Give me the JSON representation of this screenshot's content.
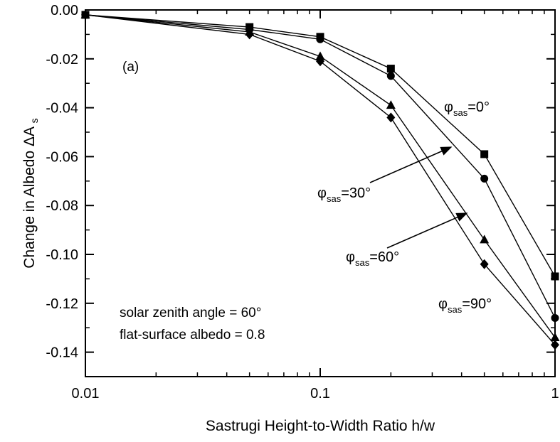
{
  "chart_data": {
    "type": "line",
    "panel_label": "(a)",
    "xlabel": "Sastrugi Height-to-Width Ratio h/w",
    "ylabel": "Change in Albedo",
    "ylabel_symbol": "ΔA",
    "ylabel_subscript": "s",
    "xscale": "log",
    "xlim": [
      0.01,
      1
    ],
    "ylim": [
      -0.15,
      0.0
    ],
    "x_ticks": [
      {
        "value": 0.01,
        "label": "0.01"
      },
      {
        "value": 0.1,
        "label": "0.1"
      },
      {
        "value": 1,
        "label": "1"
      }
    ],
    "y_ticks": [
      {
        "value": 0.0,
        "label": "0.00"
      },
      {
        "value": -0.02,
        "label": "-0.02"
      },
      {
        "value": -0.04,
        "label": "-0.04"
      },
      {
        "value": -0.06,
        "label": "-0.06"
      },
      {
        "value": -0.08,
        "label": "-0.08"
      },
      {
        "value": -0.1,
        "label": "-0.10"
      },
      {
        "value": -0.12,
        "label": "-0.12"
      },
      {
        "value": -0.14,
        "label": "-0.14"
      }
    ],
    "annotations": [
      "solar zenith angle = 60°",
      "flat-surface albedo = 0.8"
    ],
    "series": [
      {
        "name_symbol": "φ",
        "name_sub": "sas",
        "name_value": "=0°",
        "marker": "square",
        "x": [
          0.01,
          0.05,
          0.1,
          0.2,
          0.5,
          1
        ],
        "y": [
          -0.002,
          -0.007,
          -0.011,
          -0.024,
          -0.059,
          -0.109
        ]
      },
      {
        "name_symbol": "φ",
        "name_sub": "sas",
        "name_value": "=30°",
        "marker": "circle",
        "x": [
          0.01,
          0.05,
          0.1,
          0.2,
          0.5,
          1
        ],
        "y": [
          -0.002,
          -0.008,
          -0.012,
          -0.027,
          -0.069,
          -0.126
        ]
      },
      {
        "name_symbol": "φ",
        "name_sub": "sas",
        "name_value": "=60°",
        "marker": "triangle",
        "x": [
          0.01,
          0.05,
          0.1,
          0.2,
          0.5,
          1
        ],
        "y": [
          -0.002,
          -0.009,
          -0.019,
          -0.039,
          -0.094,
          -0.134
        ]
      },
      {
        "name_symbol": "φ",
        "name_sub": "sas",
        "name_value": "=90°",
        "marker": "diamond",
        "x": [
          0.01,
          0.05,
          0.1,
          0.2,
          0.5,
          1
        ],
        "y": [
          -0.002,
          -0.01,
          -0.021,
          -0.044,
          -0.104,
          -0.137
        ]
      }
    ],
    "grid": false,
    "legend": "inline labels with arrows"
  }
}
